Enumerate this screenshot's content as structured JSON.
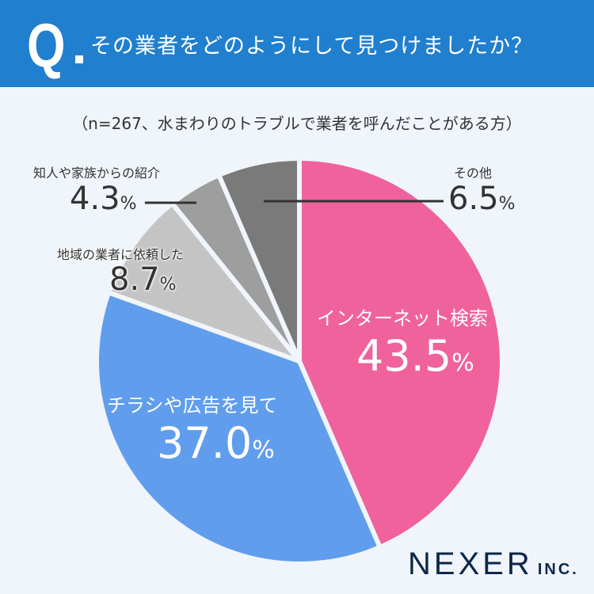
{
  "header": {
    "q_mark": "Q",
    "title": "その業者をどのようにして見つけましたか？"
  },
  "subtitle": "（n=267、水まわりのトラブルで業者を呼んだことがある方）",
  "chart_data": {
    "type": "pie",
    "title": "その業者をどのようにして見つけましたか？",
    "subtitle": "（n=267、水まわりのトラブルで業者を呼んだことがある方）",
    "start": "top",
    "direction": "clockwise",
    "slices": [
      {
        "label": "インターネット検索",
        "value": 43.5,
        "display": "43.5",
        "color": "#f0629c"
      },
      {
        "label": "チラシや広告を見て",
        "value": 37.0,
        "display": "37.0",
        "color": "#619ded"
      },
      {
        "label": "地域の業者に依頼した",
        "value": 8.7,
        "display": "8.7",
        "color": "#c4c4c4"
      },
      {
        "label": "知人や家族からの紹介",
        "value": 4.3,
        "display": "4.3",
        "color": "#9e9e9e"
      },
      {
        "label": "その他",
        "value": 6.5,
        "display": "6.5",
        "color": "#7a7a7a"
      }
    ],
    "unit": "%"
  },
  "logo": {
    "name": "NEXER",
    "suffix": "INC."
  }
}
